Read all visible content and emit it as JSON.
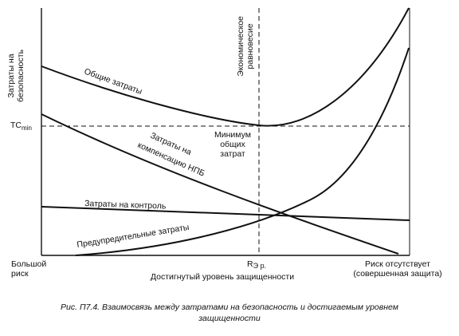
{
  "y_axis": {
    "label_line1": "Затраты на",
    "label_line2": "безопасность"
  },
  "x_axis": {
    "title": "Достигнутый уровень защищенности",
    "left_line1": "Большой",
    "left_line2": "риск",
    "right_line1": "Риск отсутствует",
    "right_line2": "(совершенная защита)",
    "mid_marker": "R",
    "mid_marker_sub": "Э р."
  },
  "equilibrium": {
    "line1": "Экономическое",
    "line2": "равновесие"
  },
  "tc_min": {
    "main": "TC",
    "sub": "min"
  },
  "minimum_label": {
    "line1": "Минимум",
    "line2": "общих",
    "line3": "затрат"
  },
  "curves": {
    "total": "Общие затраты",
    "compensation_line1": "Затраты на",
    "compensation_line2": "компенсацию НПБ",
    "control": "Затраты на контроль",
    "preventive": "Предупредительные затраты"
  },
  "caption": {
    "line1": "Рис. П7.4. Взаимосвязь между затратами на безопасность и достигаемым уровнем",
    "line2": "защищенности"
  },
  "colors": {
    "ink": "#111111",
    "background": "#ffffff"
  }
}
